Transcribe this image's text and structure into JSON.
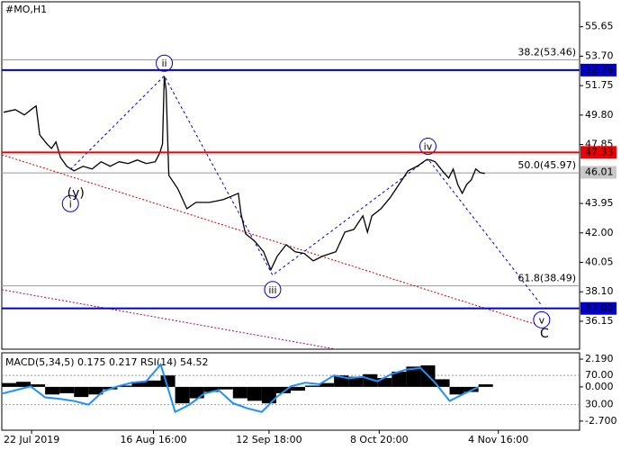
{
  "chart_data": [
    {
      "type": "line",
      "title": "#MO,H1",
      "xlim": [
        0,
        160
      ],
      "ylim": [
        34.3,
        57.3
      ],
      "yticks": [
        {
          "value": 55.65,
          "label": "55.65"
        },
        {
          "value": 53.7,
          "label": "53.70"
        },
        {
          "value": 51.75,
          "label": "51.75"
        },
        {
          "value": 49.8,
          "label": "49.80"
        },
        {
          "value": 47.85,
          "label": "47.85"
        },
        {
          "value": 43.95,
          "label": "43.95"
        },
        {
          "value": 42,
          "label": "42.00"
        },
        {
          "value": 40.05,
          "label": "40.05"
        },
        {
          "value": 38.1,
          "label": "38.10"
        },
        {
          "value": 36.15,
          "label": "36.15"
        }
      ],
      "xticks": [
        {
          "value": 8.25,
          "label": "22 Jul 2019"
        },
        {
          "value": 42,
          "label": "16 Aug 16:00"
        },
        {
          "value": 74,
          "label": "12 Sep 18:00"
        },
        {
          "value": 104.5,
          "label": "8 Oct 20:00"
        },
        {
          "value": 137.5,
          "label": "4 Nov 16:00"
        }
      ],
      "series": [
        {
          "color": "#000000",
          "x": [
            0.5,
            3.75,
            6.25,
            8.75,
            9.5,
            10.5,
            12.5,
            13.75,
            15,
            16.25,
            18,
            20,
            22.5,
            25,
            27.5,
            30,
            32.5,
            35,
            37.5,
            40,
            42.5,
            43.75,
            44.5,
            45,
            45.5,
            46.25,
            48.75,
            51.25,
            53.75,
            57.5,
            61.25,
            63.75,
            65.5,
            66.25,
            67.5,
            70,
            72.5,
            74.5,
            76.25,
            78.75,
            81.25,
            83.75,
            86.25,
            88.75,
            92.5,
            95,
            97.5,
            100,
            101.25,
            102.5,
            105,
            107.5,
            110,
            112.5,
            115,
            117.5,
            118.75,
            120,
            122,
            123.75,
            125,
            126.25,
            127.5,
            128.75,
            130,
            131.25,
            132.5,
            133.75
          ],
          "values": [
            49.99,
            50.16,
            49.81,
            50.28,
            50.4,
            48.49,
            47.89,
            47.59,
            48.02,
            47.0,
            46.41,
            46.11,
            46.41,
            46.23,
            46.71,
            46.41,
            46.71,
            46.59,
            46.83,
            46.59,
            46.71,
            47.3,
            47.89,
            52.37,
            51.48,
            45.81,
            44.92,
            43.6,
            44.02,
            44.02,
            44.2,
            44.44,
            44.62,
            43.25,
            41.94,
            41.46,
            40.75,
            39.56,
            40.45,
            41.22,
            40.75,
            40.64,
            40.15,
            40.45,
            40.75,
            42.05,
            42.23,
            43.13,
            42.05,
            43.13,
            43.6,
            44.32,
            45.21,
            46.11,
            46.41,
            46.83,
            46.83,
            46.71,
            46.11,
            45.63,
            46.23,
            45.21,
            44.62,
            45.21,
            45.51,
            46.23,
            45.99,
            45.93
          ]
        }
      ],
      "levels": [
        {
          "value": 52.78,
          "label": "52.78",
          "color": "#0000cc"
        },
        {
          "value": 47.33,
          "label": "47.33",
          "color": "#ee0000"
        },
        {
          "value": 37,
          "label": "37.00",
          "color": "#0000cc"
        }
      ],
      "current_price": {
        "value": 46.01,
        "label": "46.01"
      },
      "fib_levels": [
        {
          "value": 53.46,
          "text": "38.2(53.46)"
        },
        {
          "value": 45.97,
          "text": "50.0(45.97)"
        },
        {
          "value": 38.49,
          "text": "61.8(38.49)"
        }
      ],
      "waves": {
        "labels": [
          "i",
          "ii",
          "iii",
          "iv",
          "v"
        ],
        "x": [
          19,
          45,
          75,
          118,
          149.5
        ],
        "values": [
          46.2,
          52.4,
          39.2,
          46.9,
          37.2
        ],
        "color": "#0000cc"
      },
      "extra_labels": [
        {
          "text": "(y)",
          "x": 20.5,
          "y": 44.6,
          "color": "#cc0000"
        },
        {
          "text": "C",
          "x": 150.25,
          "y": 35.3,
          "color": "#cc0000"
        }
      ],
      "trend_lines": [
        {
          "x": [
            0,
            147.5
          ],
          "values": [
            47.18,
            35.97
          ],
          "color": "#cc0000"
        },
        {
          "x": [
            0,
            92.5
          ],
          "values": [
            38.24,
            34.3
          ],
          "color": "#aa0066"
        }
      ]
    },
    {
      "type": "macd",
      "title": "MACD(5,34,5) 0.175 0.217 RSI(14) 54.52",
      "xlim": [
        0,
        160
      ],
      "ylim": [
        -3.42,
        2.69
      ],
      "yticks": [
        {
          "value": 2.19,
          "label": "2.190"
        },
        {
          "value": 0,
          "label": "0.000"
        },
        {
          "value": -2.7,
          "label": "-2.700"
        }
      ],
      "y2lim": [
        -5,
        101
      ],
      "y2ticks": [
        {
          "value": 70,
          "label": "70.00"
        },
        {
          "value": 30,
          "label": "30.00"
        }
      ],
      "series": [
        {
          "color": "#000000",
          "x": [
            0,
            4,
            8,
            12,
            16,
            20,
            24,
            28,
            32,
            36,
            40,
            44,
            48,
            52,
            56,
            60,
            64,
            68,
            72,
            76,
            80,
            84,
            88,
            92,
            96,
            100,
            104,
            108,
            112,
            116,
            120,
            124,
            128,
            132
          ],
          "values": [
            0.3,
            0.4,
            0.2,
            -0.6,
            -0.5,
            -0.8,
            -0.6,
            -0.2,
            0.1,
            0.4,
            0.5,
            0.9,
            -1.3,
            -0.9,
            -0.4,
            -0.2,
            -0.9,
            -1.1,
            -1.3,
            -0.5,
            -0.3,
            0.1,
            0.3,
            0.9,
            0.8,
            1.0,
            0.7,
            1.2,
            1.6,
            1.7,
            0.6,
            -0.6,
            -0.4,
            0.2
          ]
        },
        {
          "color": "#1e90ff",
          "axis": "y2",
          "x": [
            0,
            4,
            8,
            12,
            16,
            20,
            24,
            28,
            32,
            36,
            40,
            44,
            48,
            52,
            56,
            60,
            64,
            68,
            72,
            76,
            80,
            84,
            88,
            92,
            96,
            100,
            104,
            108,
            112,
            116,
            120,
            124,
            128,
            132
          ],
          "values": [
            45,
            50,
            55,
            40,
            38,
            35,
            30,
            48,
            55,
            60,
            62,
            85,
            20,
            30,
            45,
            50,
            32,
            25,
            20,
            40,
            55,
            60,
            58,
            70,
            66,
            68,
            62,
            72,
            78,
            80,
            60,
            35,
            45,
            54
          ]
        }
      ]
    }
  ]
}
